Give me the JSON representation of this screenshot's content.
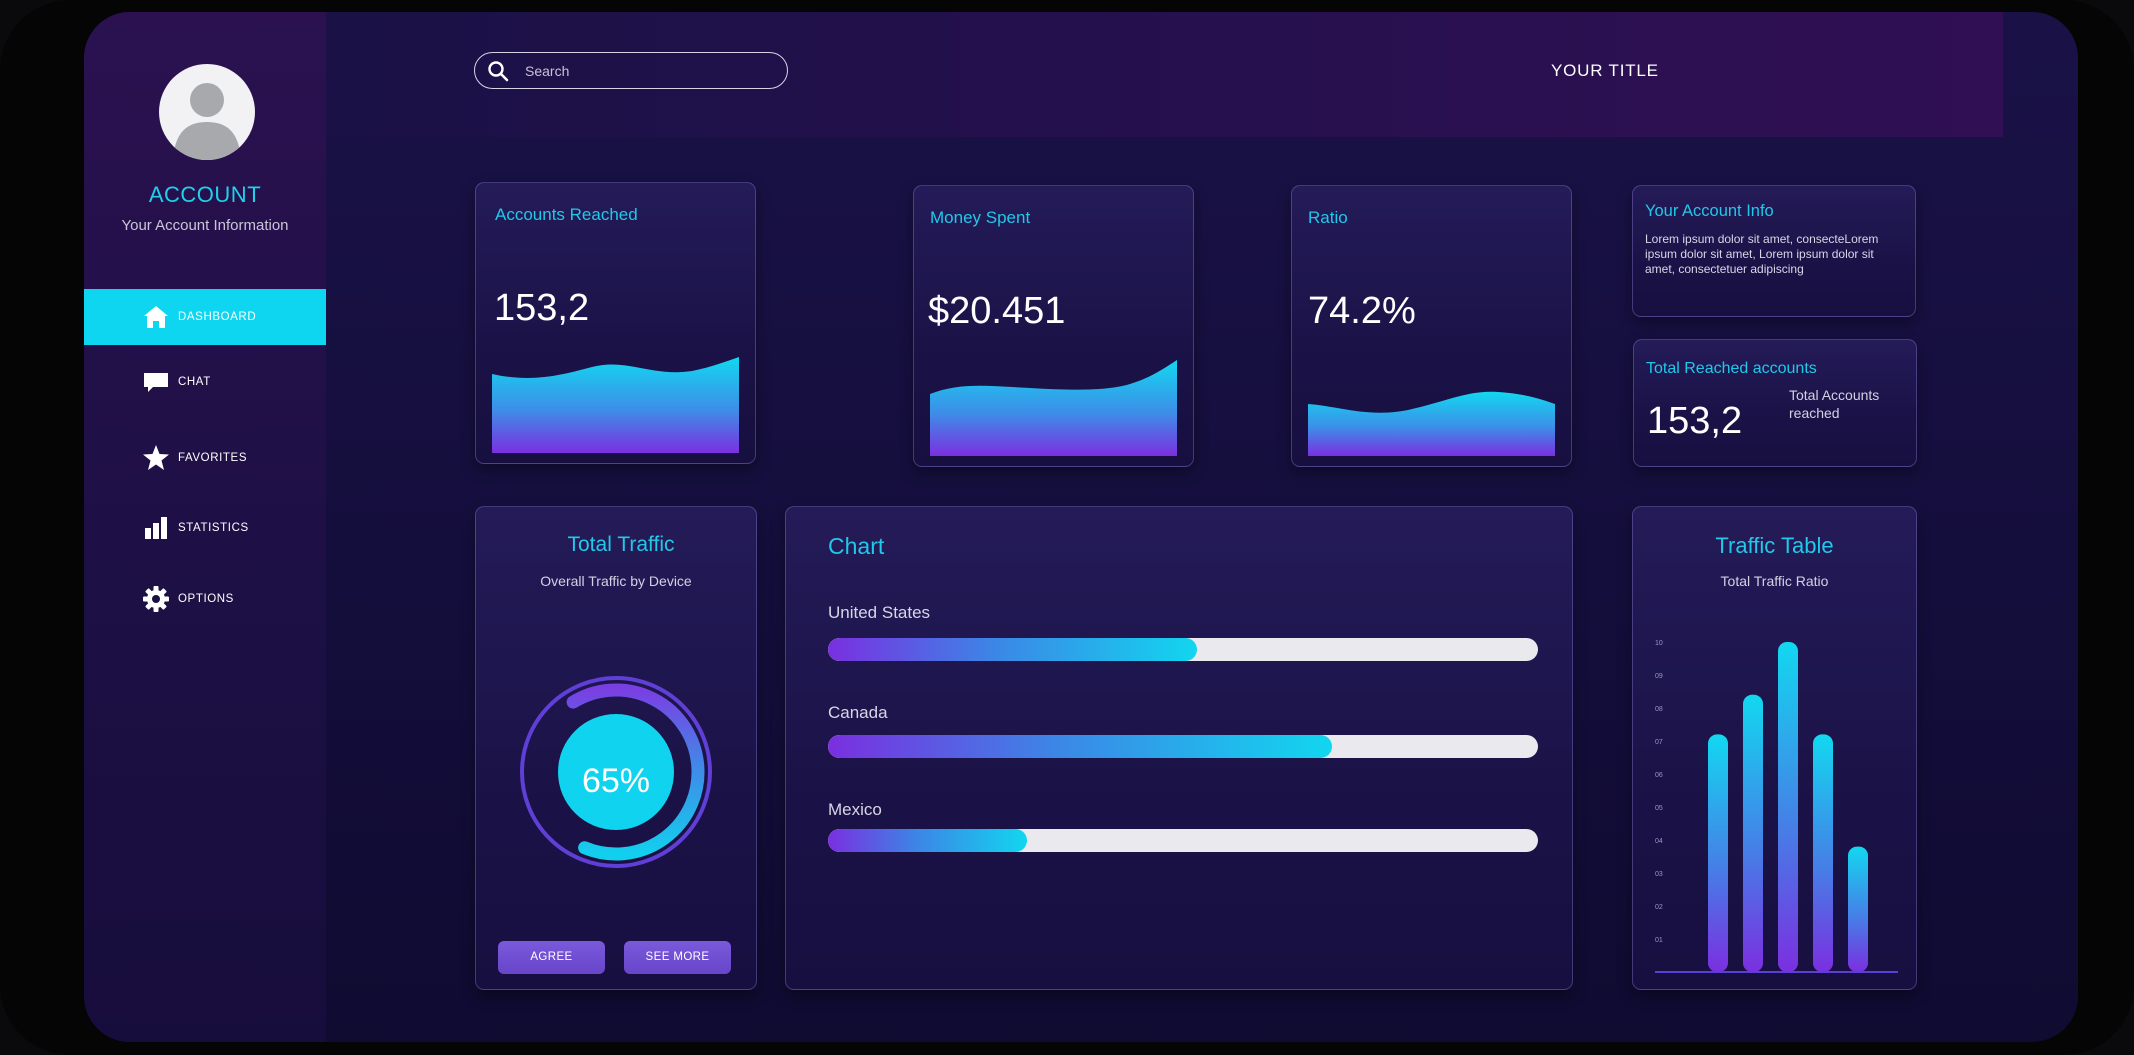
{
  "sidebar": {
    "account_title": "ACCOUNT",
    "account_subtitle": "Your Account Information",
    "items": [
      {
        "label": "DASHBOARD",
        "icon": "home-icon",
        "active": true
      },
      {
        "label": "CHAT",
        "icon": "chat-icon",
        "active": false
      },
      {
        "label": "FAVORITES",
        "icon": "star-icon",
        "active": false
      },
      {
        "label": "STATISTICS",
        "icon": "bar-chart-icon",
        "active": false
      },
      {
        "label": "OPTIONS",
        "icon": "gear-icon",
        "active": false
      }
    ]
  },
  "header": {
    "search_placeholder": "Search",
    "title": "YOUR TITLE"
  },
  "stats": {
    "accounts_reached": {
      "label": "Accounts Reached",
      "value": "153,2"
    },
    "money_spent": {
      "label": "Money Spent",
      "value": "$20.451"
    },
    "ratio": {
      "label": "Ratio",
      "value": "74.2%"
    }
  },
  "account_info": {
    "title": "Your Account Info",
    "text": "Lorem ipsum dolor sit amet, consecteLorem ipsum dolor sit amet, Lorem ipsum dolor sit amet, consectetuer adipiscing"
  },
  "total_reached": {
    "title": "Total Reached accounts",
    "value": "153,2",
    "subtitle": "Total Accounts reached"
  },
  "total_traffic": {
    "title": "Total Traffic",
    "subtitle": "Overall  Traffic by Device",
    "percent": 65,
    "percent_label": "65%",
    "agree_label": "AGREE",
    "see_more_label": "SEE MORE"
  },
  "country_chart": {
    "title": "Chart",
    "bars": [
      {
        "label": "United States",
        "fraction": 0.52
      },
      {
        "label": "Canada",
        "fraction": 0.71
      },
      {
        "label": "Mexico",
        "fraction": 0.28
      }
    ]
  },
  "traffic_table": {
    "title": "Traffic Table",
    "subtitle": "Total Traffic Ratio",
    "y_ticks": [
      "01",
      "02",
      "03",
      "04",
      "05",
      "06",
      "07",
      "08",
      "09",
      "10"
    ],
    "values": [
      7.2,
      8.4,
      10.0,
      7.2,
      3.8
    ],
    "ylim": [
      0,
      10
    ]
  },
  "colors": {
    "accent": "#0ed6f0",
    "purple": "#7b2fe0",
    "button": "#7156d6"
  }
}
